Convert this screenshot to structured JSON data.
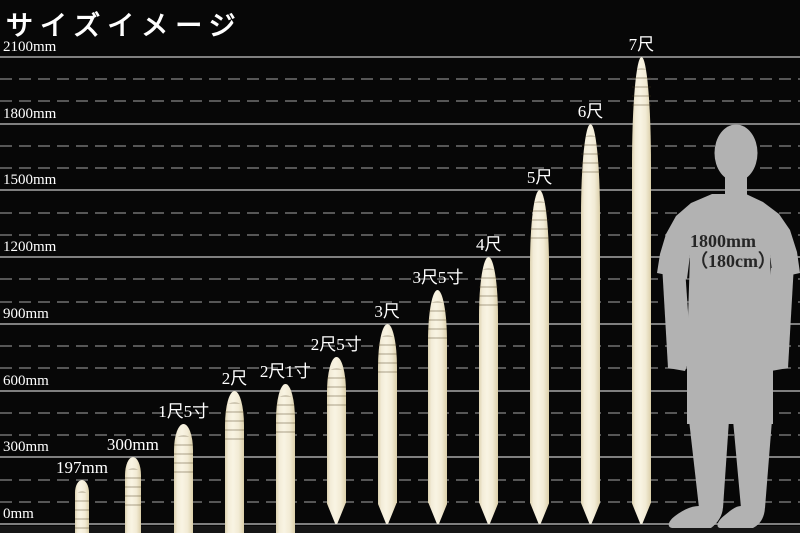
{
  "page": {
    "title": "サイズイメージ",
    "background": "#070707"
  },
  "chart_data": {
    "type": "bar",
    "title": "サイズイメージ",
    "categories": [
      "197mm",
      "300mm",
      "1尺5寸",
      "2尺",
      "2尺1寸",
      "2尺5寸",
      "3尺",
      "3尺5寸",
      "4尺",
      "5尺",
      "6尺",
      "7尺"
    ],
    "values": [
      197,
      300,
      450,
      600,
      630,
      750,
      900,
      1050,
      1200,
      1500,
      1800,
      2100
    ],
    "pointed_tip": [
      false,
      false,
      false,
      false,
      false,
      true,
      true,
      true,
      true,
      true,
      true,
      true
    ],
    "unit": "mm",
    "xlabel": "",
    "ylabel": "",
    "ylim": [
      0,
      2100
    ],
    "y_ticks": [
      0,
      300,
      600,
      900,
      1200,
      1500,
      1800,
      2100
    ],
    "y_tick_labels": [
      "0mm",
      "300mm",
      "600mm",
      "900mm",
      "1200mm",
      "1500mm",
      "1800mm",
      "2100mm"
    ],
    "minor_gridline_step_mm": 100,
    "grid": "solid line every 300mm, dashed line every 100mm",
    "legend_position": "none",
    "bar_style": "cream wooden stake, rounded top, stakes 750mm and taller have pointed bottom tip"
  },
  "reference_figure": {
    "type": "human-silhouette",
    "label_line1": "1800mm",
    "label_line2": "（180cm）",
    "height_mm": 1800
  },
  "colors": {
    "background": "#070707",
    "stake_light": "#f9f4e3",
    "stake_edge": "#dbcfa9",
    "grid_solid": "#7f7f7f",
    "grid_dashed": "#565656",
    "text": "#ffffff",
    "silhouette": "#b2b2b2",
    "figure_text": "#262626"
  }
}
